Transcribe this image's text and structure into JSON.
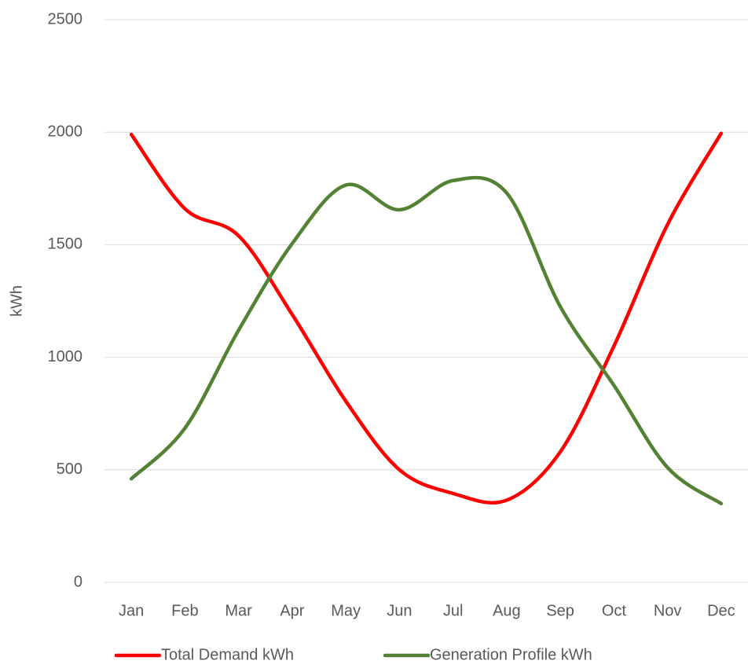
{
  "chart_data": {
    "type": "line",
    "y_label": "kWh",
    "categories": [
      "Jan",
      "Feb",
      "Mar",
      "Apr",
      "May",
      "Jun",
      "Jul",
      "Aug",
      "Sep",
      "Oct",
      "Nov",
      "Dec"
    ],
    "series": [
      {
        "name": "Total Demand kWh",
        "color": "#ff0000",
        "values": [
          1990,
          1660,
          1540,
          1190,
          805,
          500,
          395,
          365,
          580,
          1050,
          1590,
          1995
        ]
      },
      {
        "name": "Generation Profile kWh",
        "color": "#548235",
        "values": [
          460,
          685,
          1120,
          1505,
          1765,
          1655,
          1785,
          1730,
          1225,
          875,
          510,
          350
        ]
      }
    ],
    "ylim": [
      0,
      2500
    ],
    "yticks": [
      0,
      500,
      1000,
      1500,
      2000,
      2500
    ],
    "grid": true,
    "smooth": true,
    "legend": "bottom"
  }
}
